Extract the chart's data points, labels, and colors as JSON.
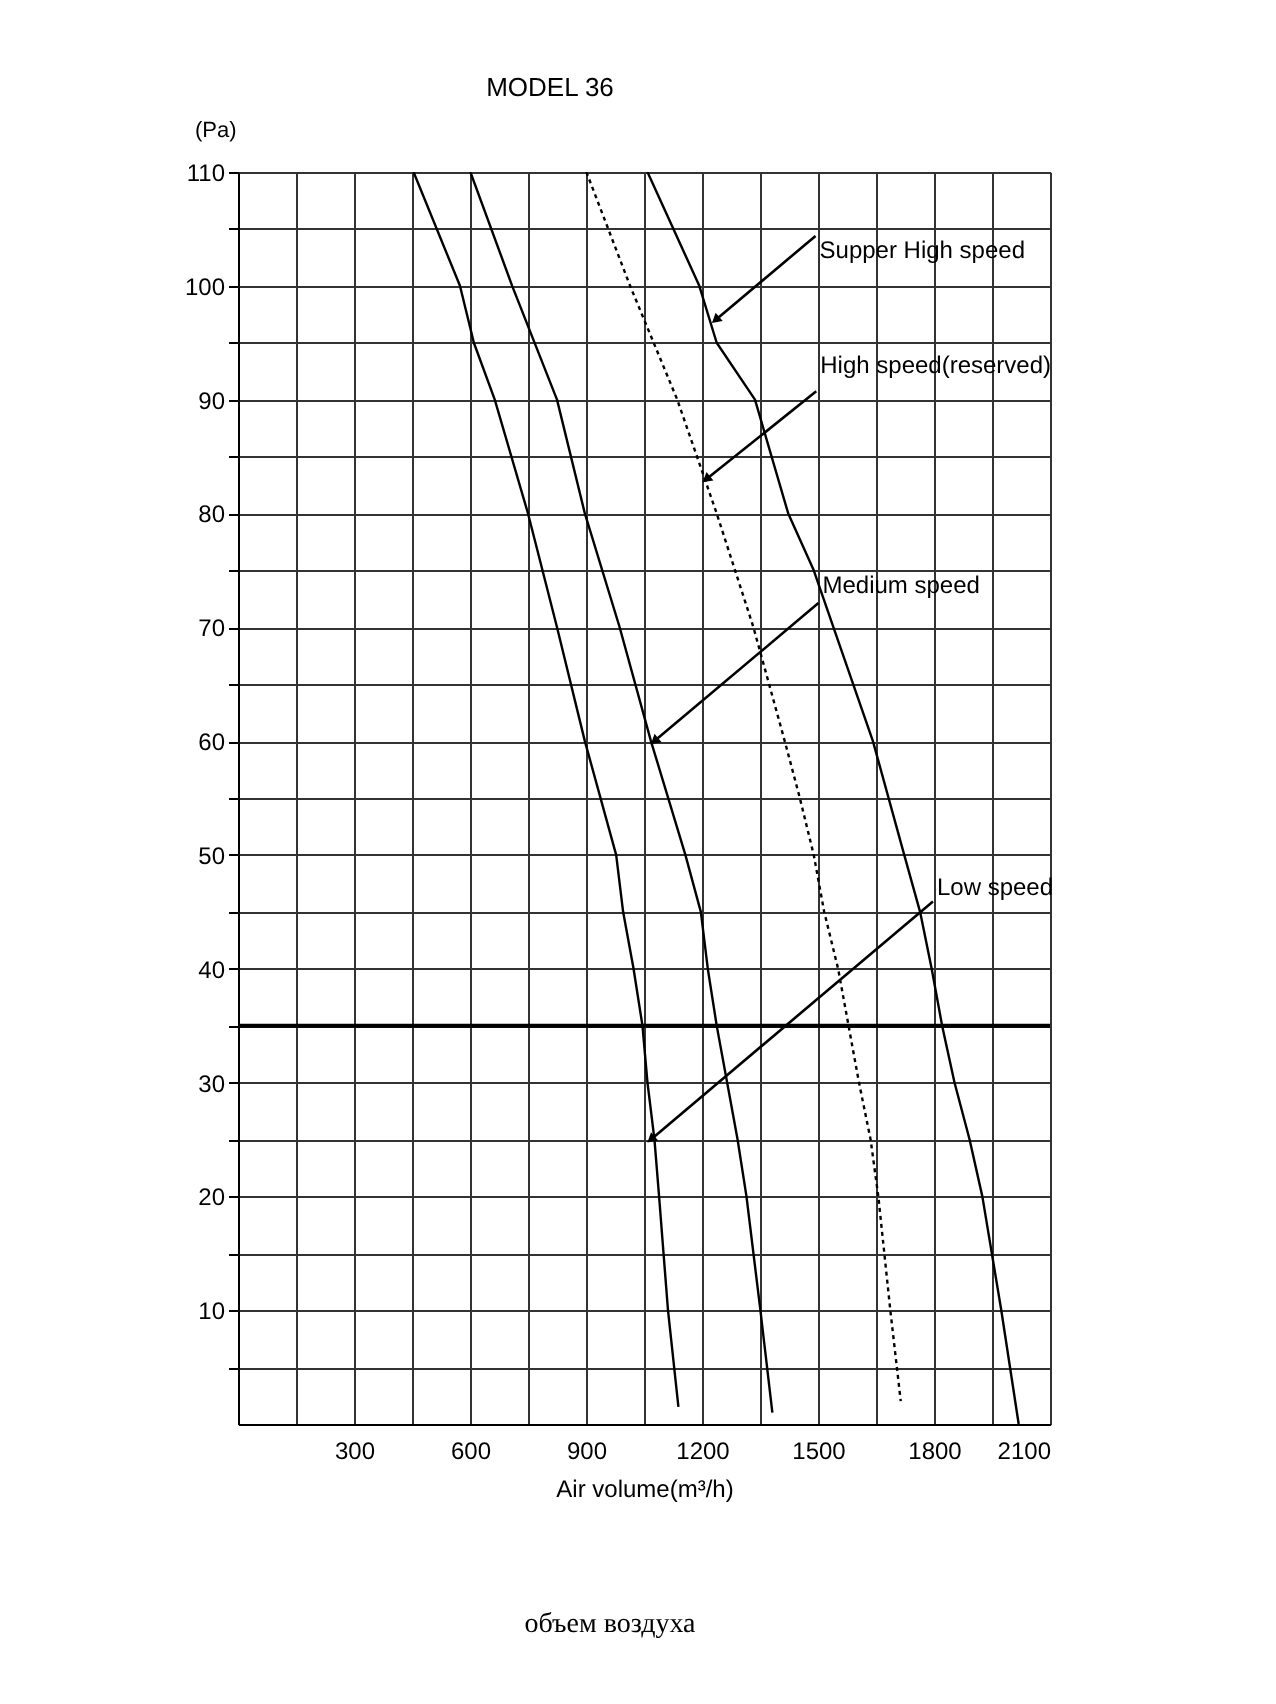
{
  "chart_data": {
    "type": "line",
    "title": "MODEL 36",
    "xlabel": "Air volume(m³/h)",
    "ylabel": "(Pa)",
    "xlim": [
      0,
      2100
    ],
    "ylim": [
      0,
      110
    ],
    "xticks": [
      {
        "value": 150,
        "label": null
      },
      300,
      {
        "value": 450,
        "label": null
      },
      600,
      {
        "value": 750,
        "label": null
      },
      900,
      {
        "value": 1050,
        "label": null
      },
      1200,
      {
        "value": 1350,
        "label": null
      },
      1500,
      {
        "value": 1650,
        "label": null
      },
      1800,
      {
        "value": 1950,
        "label": null
      },
      2100
    ],
    "yticks": [
      {
        "value": 5,
        "label": null
      },
      10,
      {
        "value": 15,
        "label": null
      },
      20,
      {
        "value": 25,
        "label": null
      },
      30,
      {
        "value": 35,
        "label": null
      },
      40,
      {
        "value": 45,
        "label": null
      },
      50,
      {
        "value": 55,
        "label": null
      },
      60,
      {
        "value": 65,
        "label": null
      },
      70,
      {
        "value": 75,
        "label": null
      },
      80,
      {
        "value": 85,
        "label": null
      },
      90,
      {
        "value": 95,
        "label": null
      },
      100,
      {
        "value": 105,
        "label": null
      },
      110
    ],
    "grid": true,
    "marker": "none",
    "series": [
      {
        "color": "#000000",
        "line_style": "solid",
        "x": [
          454,
          574,
          610,
          664,
          750,
          825,
          897,
          978,
          996,
          1023,
          1046,
          1059,
          1077,
          1089,
          1112,
          1139
        ],
        "values": [
          110,
          100,
          95,
          90,
          80,
          70,
          60,
          50,
          45,
          40,
          35,
          30,
          25,
          20,
          10,
          1.5
        ]
      },
      {
        "color": "#000000",
        "line_style": "solid",
        "x": [
          601,
          709,
          825,
          897,
          987,
          1068,
          1157,
          1197,
          1215,
          1238,
          1265,
          1292,
          1315,
          1351,
          1382
        ],
        "values": [
          110,
          100,
          90,
          80,
          70,
          60,
          50,
          45,
          40,
          35,
          30,
          25,
          20,
          10,
          1
        ]
      },
      {
        "color": "#000000",
        "line_style": "dotted",
        "x": [
          901,
          1014,
          1136,
          1238,
          1333,
          1414,
          1453,
          1489,
          1516,
          1552,
          1579,
          1606,
          1636,
          1656,
          1687,
          1714
        ],
        "values": [
          110,
          100,
          90,
          80,
          70,
          60,
          55,
          50,
          45,
          40,
          35,
          30,
          25,
          20,
          10,
          2
        ]
      },
      {
        "color": "#000000",
        "line_style": "solid",
        "x": [
          1059,
          1193,
          1238,
          1337,
          1423,
          1489,
          1540,
          1642,
          1723,
          1764,
          1794,
          1821,
          1853,
          1892,
          1925,
          1974,
          2019
        ],
        "values": [
          110,
          100,
          95,
          90,
          80,
          75,
          70,
          60,
          50,
          45,
          40,
          35,
          30,
          25,
          20,
          10,
          0
        ]
      }
    ],
    "ref_lines": [
      {
        "axis": "y",
        "value": 35,
        "label": null,
        "color": "#000000"
      }
    ],
    "annotations": [
      {
        "text": "Supper High speed",
        "x": 1235,
        "y": 97
      },
      {
        "text": "High speed(reserved)",
        "x": 1211,
        "y": 83
      },
      {
        "text": "Medium speed",
        "x": 1077,
        "y": 60
      },
      {
        "text": "Low speed",
        "x": 1068,
        "y": 25
      },
      "объем воздуха"
    ]
  }
}
